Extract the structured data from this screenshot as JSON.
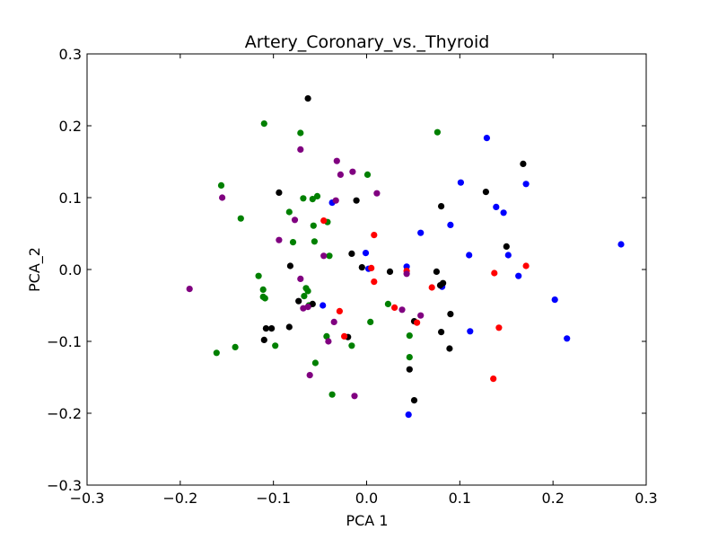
{
  "chart_data": {
    "type": "scatter",
    "title": "Artery_Coronary_vs._Thyroid",
    "xlabel": "PCA 1",
    "ylabel": "PCA_2",
    "xlim": [
      -0.3,
      0.3
    ],
    "ylim": [
      -0.3,
      0.3
    ],
    "xticks": [
      "−0.3",
      "−0.2",
      "−0.1",
      "0.0",
      "0.1",
      "0.2",
      "0.3"
    ],
    "yticks": [
      "−0.3",
      "−0.2",
      "−0.1",
      "0.0",
      "0.1",
      "0.2",
      "0.3"
    ],
    "grid": false,
    "series": [
      {
        "color": "#008000",
        "points": [
          [
            -0.11,
            0.203
          ],
          [
            0.076,
            0.191
          ],
          [
            -0.071,
            0.19
          ],
          [
            -0.156,
            0.117
          ],
          [
            0.001,
            0.132
          ],
          [
            -0.053,
            0.102
          ],
          [
            -0.068,
            0.099
          ],
          [
            -0.058,
            0.098
          ],
          [
            -0.135,
            0.071
          ],
          [
            -0.083,
            0.08
          ],
          [
            -0.042,
            0.066
          ],
          [
            -0.057,
            0.061
          ],
          [
            -0.079,
            0.038
          ],
          [
            -0.056,
            0.039
          ],
          [
            -0.04,
            0.019
          ],
          [
            -0.116,
            -0.009
          ],
          [
            -0.065,
            -0.026
          ],
          [
            -0.111,
            -0.028
          ],
          [
            -0.111,
            -0.038
          ],
          [
            -0.109,
            -0.04
          ],
          [
            -0.063,
            -0.03
          ],
          [
            -0.067,
            -0.037
          ],
          [
            0.023,
            -0.048
          ],
          [
            -0.062,
            -0.05
          ],
          [
            0.004,
            -0.073
          ],
          [
            0.046,
            -0.092
          ],
          [
            -0.043,
            -0.093
          ],
          [
            -0.098,
            -0.106
          ],
          [
            -0.141,
            -0.108
          ],
          [
            -0.161,
            -0.116
          ],
          [
            -0.016,
            -0.106
          ],
          [
            0.046,
            -0.122
          ],
          [
            -0.055,
            -0.13
          ],
          [
            -0.037,
            -0.174
          ]
        ]
      },
      {
        "color": "#0000ff",
        "points": [
          [
            0.129,
            0.183
          ],
          [
            0.101,
            0.121
          ],
          [
            0.171,
            0.119
          ],
          [
            0.139,
            0.087
          ],
          [
            0.147,
            0.079
          ],
          [
            0.09,
            0.062
          ],
          [
            0.058,
            0.051
          ],
          [
            0.273,
            0.035
          ],
          [
            0.11,
            0.02
          ],
          [
            0.152,
            0.02
          ],
          [
            -0.001,
            0.023
          ],
          [
            0.043,
            0.004
          ],
          [
            0.002,
            0.001
          ],
          [
            0.163,
            -0.009
          ],
          [
            0.081,
            -0.024
          ],
          [
            -0.047,
            -0.05
          ],
          [
            0.202,
            -0.042
          ],
          [
            0.111,
            -0.086
          ],
          [
            0.215,
            -0.096
          ],
          [
            0.045,
            -0.202
          ],
          [
            -0.037,
            0.093
          ]
        ]
      },
      {
        "color": "#000000",
        "points": [
          [
            -0.063,
            0.238
          ],
          [
            0.168,
            0.147
          ],
          [
            -0.094,
            0.107
          ],
          [
            0.128,
            0.108
          ],
          [
            -0.011,
            0.096
          ],
          [
            0.08,
            0.088
          ],
          [
            0.15,
            0.032
          ],
          [
            -0.016,
            0.022
          ],
          [
            -0.082,
            0.005
          ],
          [
            -0.005,
            0.003
          ],
          [
            0.025,
            -0.003
          ],
          [
            0.075,
            -0.003
          ],
          [
            0.082,
            -0.019
          ],
          [
            0.079,
            -0.022
          ],
          [
            -0.073,
            -0.044
          ],
          [
            -0.058,
            -0.048
          ],
          [
            0.09,
            -0.062
          ],
          [
            0.051,
            -0.072
          ],
          [
            -0.102,
            -0.082
          ],
          [
            -0.108,
            -0.082
          ],
          [
            -0.083,
            -0.08
          ],
          [
            0.08,
            -0.087
          ],
          [
            -0.11,
            -0.098
          ],
          [
            -0.02,
            -0.094
          ],
          [
            0.089,
            -0.11
          ],
          [
            0.046,
            -0.139
          ],
          [
            0.051,
            -0.182
          ]
        ]
      },
      {
        "color": "#ff0000",
        "points": [
          [
            -0.046,
            0.068
          ],
          [
            0.008,
            0.048
          ],
          [
            0.005,
            0.002
          ],
          [
            0.043,
            -0.002
          ],
          [
            0.137,
            -0.005
          ],
          [
            0.171,
            0.005
          ],
          [
            0.008,
            -0.017
          ],
          [
            0.07,
            -0.025
          ],
          [
            0.03,
            -0.053
          ],
          [
            -0.029,
            -0.058
          ],
          [
            0.054,
            -0.074
          ],
          [
            0.142,
            -0.081
          ],
          [
            -0.024,
            -0.093
          ],
          [
            0.136,
            -0.152
          ]
        ]
      },
      {
        "color": "#800080",
        "points": [
          [
            -0.071,
            0.167
          ],
          [
            -0.032,
            0.151
          ],
          [
            -0.015,
            0.136
          ],
          [
            -0.028,
            0.132
          ],
          [
            0.011,
            0.106
          ],
          [
            -0.155,
            0.1
          ],
          [
            -0.033,
            0.096
          ],
          [
            -0.077,
            0.069
          ],
          [
            -0.094,
            0.041
          ],
          [
            -0.046,
            0.019
          ],
          [
            -0.071,
            -0.013
          ],
          [
            0.043,
            -0.006
          ],
          [
            -0.19,
            -0.027
          ],
          [
            -0.063,
            -0.052
          ],
          [
            -0.068,
            -0.054
          ],
          [
            0.038,
            -0.056
          ],
          [
            0.058,
            -0.064
          ],
          [
            -0.035,
            -0.073
          ],
          [
            -0.041,
            -0.1
          ],
          [
            -0.061,
            -0.147
          ],
          [
            -0.013,
            -0.176
          ]
        ]
      }
    ]
  }
}
